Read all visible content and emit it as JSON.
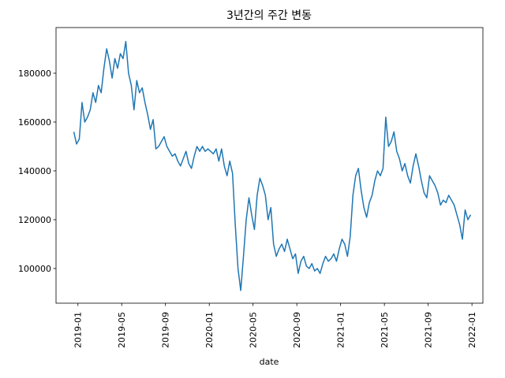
{
  "chart_data": {
    "type": "line",
    "title": "3년간의 주간 변동",
    "xlabel": "date",
    "color": "#1f77b4",
    "x": [
      "2018-12",
      "2018-12",
      "2019-01",
      "2019-01",
      "2019-01",
      "2019-01",
      "2019-02",
      "2019-02",
      "2019-02",
      "2019-02",
      "2019-03",
      "2019-03",
      "2019-03",
      "2019-03",
      "2019-04",
      "2019-04",
      "2019-04",
      "2019-04",
      "2019-05",
      "2019-05",
      "2019-05",
      "2019-05",
      "2019-06",
      "2019-06",
      "2019-06",
      "2019-06",
      "2019-07",
      "2019-07",
      "2019-07",
      "2019-07",
      "2019-08",
      "2019-08",
      "2019-08",
      "2019-08",
      "2019-09",
      "2019-09",
      "2019-09",
      "2019-09",
      "2019-10",
      "2019-10",
      "2019-10",
      "2019-10",
      "2019-11",
      "2019-11",
      "2019-11",
      "2019-11",
      "2019-12",
      "2019-12",
      "2019-12",
      "2019-12",
      "2020-01",
      "2020-01",
      "2020-01",
      "2020-01",
      "2020-02",
      "2020-02",
      "2020-02",
      "2020-02",
      "2020-03",
      "2020-03",
      "2020-03",
      "2020-03",
      "2020-04",
      "2020-04",
      "2020-04",
      "2020-04",
      "2020-05",
      "2020-05",
      "2020-05",
      "2020-05",
      "2020-06",
      "2020-06",
      "2020-06",
      "2020-06",
      "2020-07",
      "2020-07",
      "2020-07",
      "2020-07",
      "2020-08",
      "2020-08",
      "2020-08",
      "2020-08",
      "2020-09",
      "2020-09",
      "2020-09",
      "2020-09",
      "2020-10",
      "2020-10",
      "2020-10",
      "2020-10",
      "2020-11",
      "2020-11",
      "2020-11",
      "2020-11",
      "2020-12",
      "2020-12",
      "2020-12",
      "2020-12",
      "2021-01",
      "2021-01",
      "2021-01",
      "2021-01",
      "2021-02",
      "2021-02",
      "2021-02",
      "2021-02",
      "2021-03",
      "2021-03",
      "2021-03",
      "2021-03",
      "2021-04",
      "2021-04",
      "2021-04",
      "2021-04",
      "2021-05",
      "2021-05",
      "2021-05",
      "2021-05",
      "2021-06",
      "2021-06",
      "2021-06",
      "2021-06",
      "2021-07",
      "2021-07",
      "2021-07",
      "2021-07",
      "2021-08",
      "2021-08",
      "2021-08",
      "2021-08",
      "2021-09",
      "2021-09",
      "2021-09",
      "2021-09",
      "2021-10",
      "2021-10",
      "2021-10",
      "2021-10",
      "2021-11",
      "2021-11",
      "2021-11",
      "2021-11",
      "2021-12",
      "2021-12",
      "2021-12",
      "2021-12"
    ],
    "values": [
      156000,
      151000,
      153000,
      168000,
      160000,
      162000,
      165000,
      172000,
      168000,
      175000,
      172000,
      182000,
      190000,
      185000,
      178000,
      186000,
      182000,
      188000,
      186000,
      193000,
      180000,
      175000,
      165000,
      177000,
      172000,
      174000,
      168000,
      163000,
      157000,
      161000,
      149000,
      150000,
      152000,
      154000,
      150000,
      148000,
      146000,
      147000,
      144000,
      142000,
      145000,
      148000,
      143000,
      141000,
      146000,
      150000,
      148000,
      150000,
      148000,
      149000,
      148000,
      147000,
      149000,
      144000,
      149000,
      142000,
      138000,
      144000,
      139000,
      118000,
      100000,
      91000,
      105000,
      120000,
      129000,
      122000,
      116000,
      130000,
      137000,
      134000,
      130000,
      120000,
      125000,
      110000,
      105000,
      108000,
      110000,
      107000,
      112000,
      108000,
      104000,
      106000,
      98000,
      103000,
      105000,
      101000,
      100000,
      102000,
      99000,
      100000,
      98000,
      102000,
      105000,
      103000,
      104000,
      106000,
      103000,
      108000,
      112000,
      110000,
      105000,
      113000,
      130000,
      138000,
      141000,
      132000,
      125000,
      121000,
      127000,
      130000,
      136000,
      140000,
      138000,
      141000,
      162000,
      150000,
      152000,
      156000,
      148000,
      145000,
      140000,
      143000,
      138000,
      135000,
      142000,
      147000,
      142000,
      136000,
      131000,
      129000,
      138000,
      136000,
      134000,
      131000,
      126000,
      128000,
      127000,
      130000,
      128000,
      126000,
      122000,
      118000,
      112000,
      124000,
      120000,
      122000
    ],
    "xlim": [
      "2018-11",
      "2022-02"
    ],
    "xticks": [
      "2019-01",
      "2019-05",
      "2019-09",
      "2020-01",
      "2020-05",
      "2020-09",
      "2021-01",
      "2021-05",
      "2021-09",
      "2022-01"
    ],
    "ylim": [
      85800,
      198700
    ],
    "yticks": [
      100000,
      120000,
      140000,
      160000,
      180000
    ]
  }
}
